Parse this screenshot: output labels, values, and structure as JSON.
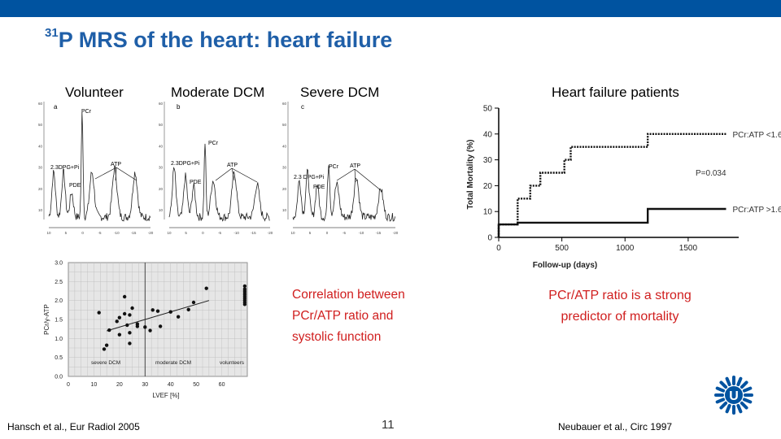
{
  "slide": {
    "title_sup": "31",
    "title_main": "P MRS of the heart: heart failure",
    "page_number": "11",
    "colors": {
      "bar": "#0053a0",
      "title": "#1f5fa8",
      "highlight": "#d01e1e"
    }
  },
  "spectra": {
    "labels": [
      "Volunteer",
      "Moderate DCM",
      "Severe DCM"
    ],
    "panel_letters": [
      "a",
      "b",
      "c"
    ],
    "peak_labels": {
      "pcr": "PCr",
      "atp": "ATP",
      "pde": "PDE",
      "dpg_pi": "2.3DPG+Pi",
      "dpg_pi_c": "2.3 DPG+Pi"
    },
    "y_ticks": [
      "60",
      "50",
      "40",
      "30",
      "20",
      "10"
    ],
    "x_ticks": [
      "10",
      "5",
      "0",
      "-5",
      "-10",
      "-15",
      "-20"
    ]
  },
  "kaplan_meier": {
    "title": "Heart failure patients",
    "p_value": "P=0.034",
    "citation": "Neubauer  et al., Circ 1997",
    "conclusion_line1": "PCr/ATP ratio is a strong",
    "conclusion_line2": "predictor of mortality"
  },
  "scatter": {
    "citation": "Hansch et al., Eur Radiol 2005",
    "group_labels": [
      "severe DCM",
      "moderate DCM",
      "volunteers"
    ],
    "caption_line1": "Correlation between",
    "caption_line2": "PCr/ATP ratio and",
    "caption_line3": "systolic function"
  },
  "logo": {
    "letter": "U"
  },
  "chart_data": [
    {
      "type": "line",
      "title": "Heart failure patients",
      "xlabel": "Follow-up (days)",
      "ylabel": "Total Mortality (%)",
      "xlim": [
        0,
        1900
      ],
      "ylim": [
        0,
        50
      ],
      "x_ticks": [
        0,
        500,
        1000,
        1500
      ],
      "y_ticks": [
        0,
        10,
        20,
        30,
        40,
        50
      ],
      "series": [
        {
          "name": "PCr:ATP <1.6",
          "style": "dotted",
          "points": [
            [
              0,
              0
            ],
            [
              0,
              5
            ],
            [
              150,
              5
            ],
            [
              150,
              15
            ],
            [
              250,
              15
            ],
            [
              250,
              20
            ],
            [
              330,
              20
            ],
            [
              330,
              25
            ],
            [
              520,
              25
            ],
            [
              520,
              30
            ],
            [
              570,
              30
            ],
            [
              570,
              35
            ],
            [
              1180,
              35
            ],
            [
              1180,
              40
            ],
            [
              1800,
              40
            ]
          ]
        },
        {
          "name": "PCr:ATP >1.6",
          "style": "solid",
          "points": [
            [
              0,
              0
            ],
            [
              0,
              5
            ],
            [
              150,
              5
            ],
            [
              150,
              5.7
            ],
            [
              1180,
              5.7
            ],
            [
              1180,
              11
            ],
            [
              1800,
              11
            ]
          ]
        }
      ]
    },
    {
      "type": "scatter",
      "xlabel": "LVEF  [%]",
      "ylabel": "PCr/γ-ATP",
      "xlim": [
        0,
        70
      ],
      "ylim": [
        0,
        3.0
      ],
      "x_ticks": [
        0,
        10,
        20,
        30,
        40,
        50,
        60
      ],
      "y_ticks": [
        0.0,
        0.5,
        1.0,
        1.5,
        2.0,
        2.5,
        3.0
      ],
      "points": [
        [
          12,
          1.68
        ],
        [
          14,
          0.72
        ],
        [
          15,
          0.82
        ],
        [
          16,
          1.22
        ],
        [
          19,
          1.45
        ],
        [
          20,
          1.1
        ],
        [
          20,
          1.55
        ],
        [
          22,
          1.65
        ],
        [
          22,
          2.1
        ],
        [
          23,
          1.35
        ],
        [
          24,
          1.15
        ],
        [
          24,
          1.62
        ],
        [
          24,
          0.87
        ],
        [
          25,
          1.8
        ],
        [
          27,
          1.38
        ],
        [
          27,
          1.32
        ],
        [
          30,
          1.3
        ],
        [
          32,
          1.21
        ],
        [
          33,
          1.75
        ],
        [
          35,
          1.72
        ],
        [
          36,
          1.32
        ],
        [
          40,
          1.7
        ],
        [
          43,
          1.57
        ],
        [
          47,
          1.76
        ],
        [
          49,
          1.95
        ],
        [
          54,
          2.32
        ]
      ],
      "fit_line": [
        [
          15,
          1.2
        ],
        [
          55,
          2.0
        ]
      ],
      "volunteers": {
        "x": 69,
        "values": [
          2.38,
          2.3,
          2.25,
          2.2,
          2.15,
          2.1,
          2.05,
          2.0,
          1.95,
          1.9
        ]
      },
      "group_dividers_x": [
        30
      ]
    }
  ]
}
